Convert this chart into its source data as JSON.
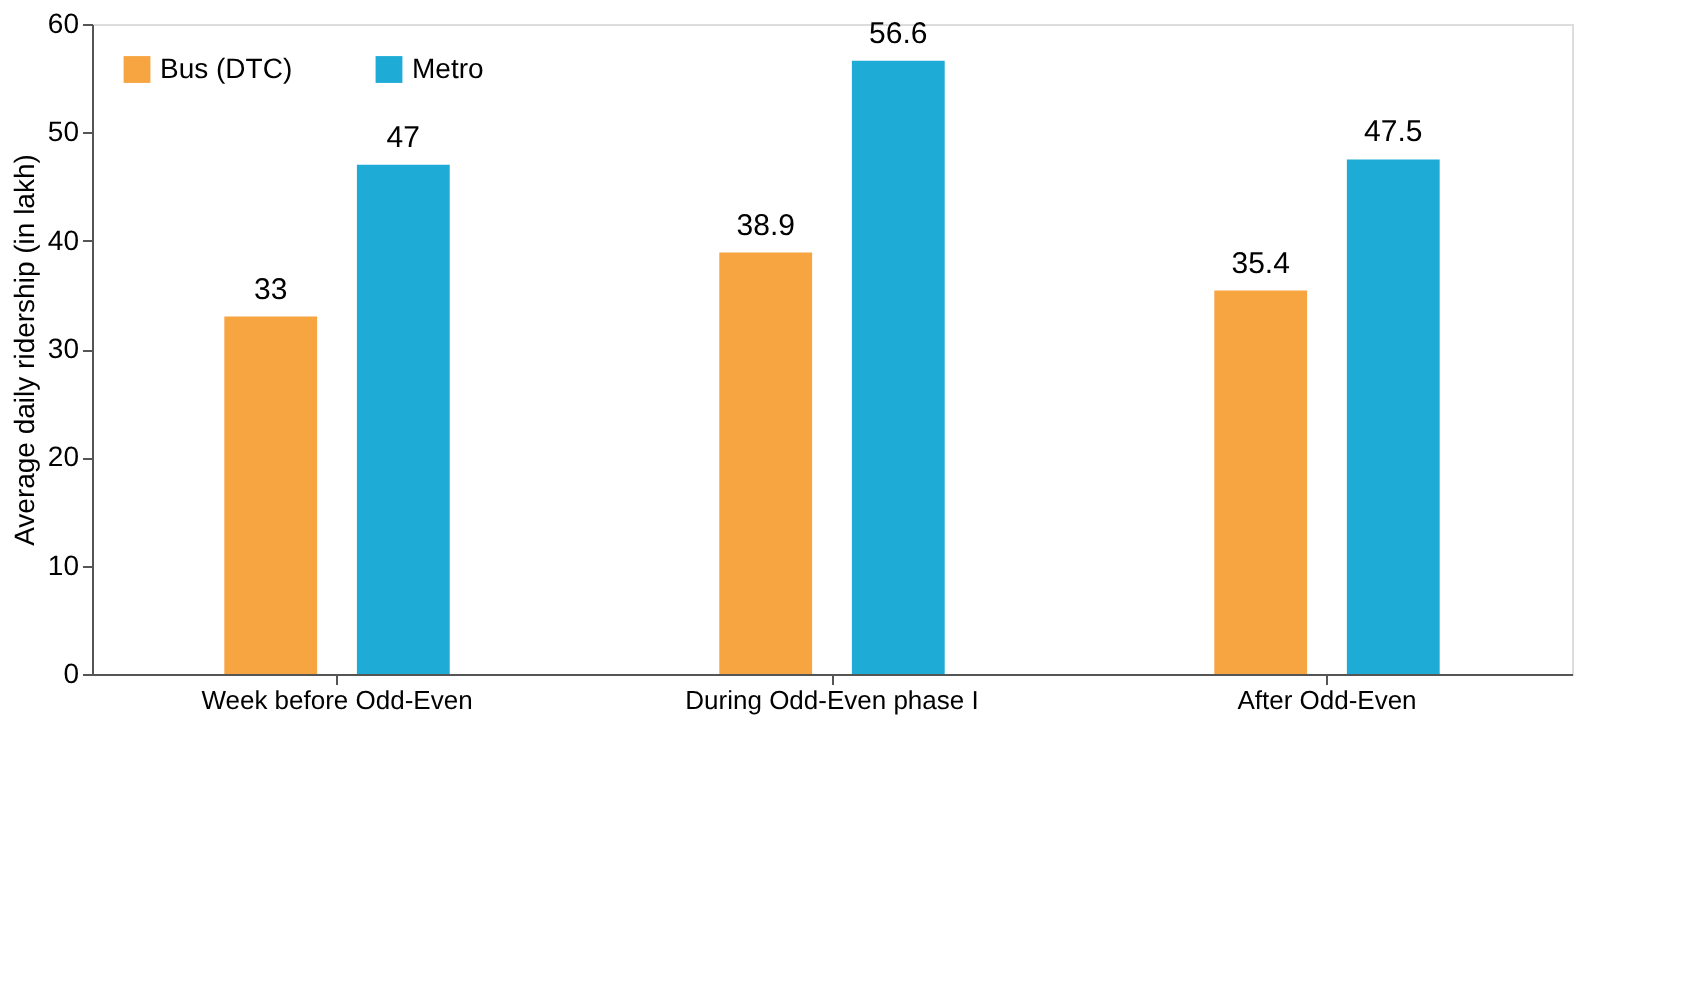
{
  "chart_data": {
    "type": "bar",
    "ylabel": "Average daily ridership (in lakh)",
    "categories": [
      "Week before Odd-Even",
      "During Odd-Even phase I",
      "After Odd-Even"
    ],
    "series": [
      {
        "name": "Bus (DTC)",
        "color": "#f7a541",
        "values": [
          33,
          38.9,
          35.4
        ]
      },
      {
        "name": "Metro",
        "color": "#1eabd6",
        "values": [
          47,
          56.6,
          47.5
        ]
      }
    ],
    "ylim": [
      0,
      60
    ],
    "yticks": [
      0,
      10,
      20,
      30,
      40,
      50,
      60
    ],
    "grid": false,
    "legend": "top left",
    "data_labels": true
  }
}
